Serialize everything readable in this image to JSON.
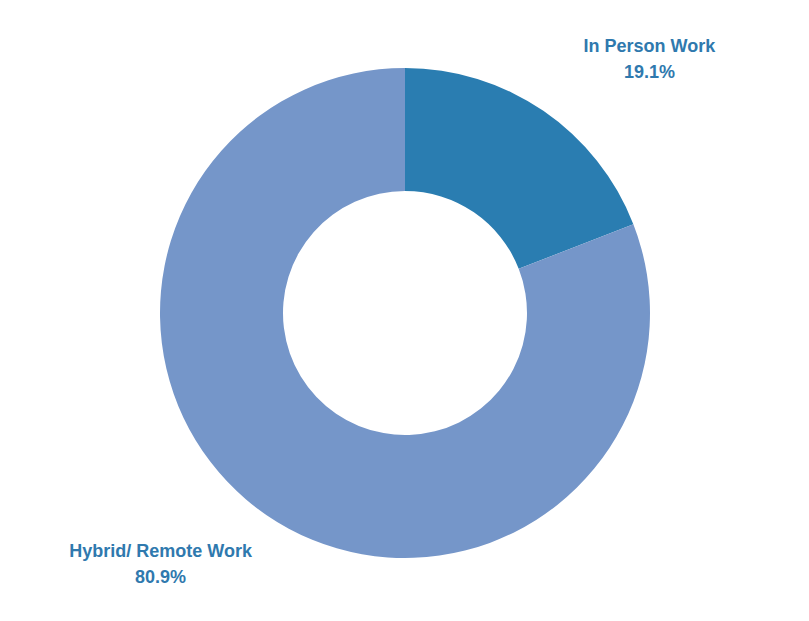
{
  "chart_data": {
    "type": "donut",
    "categories": [
      "In Person Work",
      "Hybrid/ Remote Work"
    ],
    "values": [
      19.1,
      80.9
    ],
    "value_labels": [
      "19.1%",
      "80.9%"
    ],
    "colors": [
      "#2a7db1",
      "#7596c9"
    ],
    "data_labels": true
  }
}
